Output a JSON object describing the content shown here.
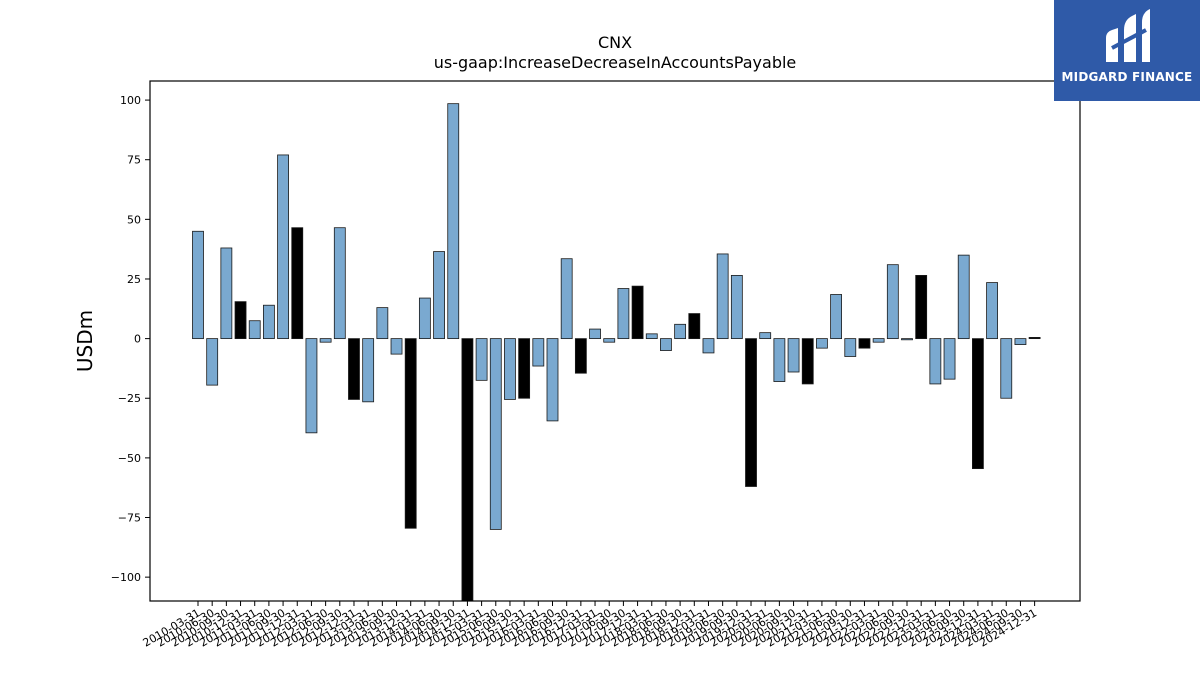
{
  "chart_data": {
    "type": "bar",
    "title": "CNX",
    "subtitle": "us-gaap:IncreaseDecreaseInAccountsPayable",
    "xlabel": "",
    "ylabel": "USDm",
    "ylim": [
      -110,
      108
    ],
    "yticks": [
      100,
      75,
      50,
      25,
      0,
      -25,
      -50,
      -75,
      -100
    ],
    "ytick_labels": [
      "100",
      "75",
      "50",
      "25",
      "0",
      "−25",
      "−50",
      "−75",
      "−100"
    ],
    "grid": false,
    "legend": "none",
    "colors": {
      "quarter": "#7aa9d0",
      "annual": "#000000",
      "edge": "#1a1a1a"
    },
    "categories": [
      "2010-03-31",
      "2010-06-30",
      "2010-09-30",
      "2010-12-31",
      "2011-03-31",
      "2011-06-30",
      "2011-09-30",
      "2011-12-31",
      "2012-03-31",
      "2012-06-30",
      "2012-09-30",
      "2012-12-31",
      "2013-03-31",
      "2013-06-30",
      "2013-09-30",
      "2013-12-31",
      "2014-03-31",
      "2014-06-30",
      "2014-09-30",
      "2014-12-31",
      "2015-03-31",
      "2015-06-30",
      "2015-09-30",
      "2015-12-31",
      "2016-03-31",
      "2016-06-30",
      "2016-09-30",
      "2016-12-31",
      "2017-03-31",
      "2017-06-30",
      "2017-09-30",
      "2017-12-31",
      "2018-03-31",
      "2018-06-30",
      "2018-09-30",
      "2018-12-31",
      "2019-03-31",
      "2019-06-30",
      "2019-09-30",
      "2019-12-31",
      "2020-03-31",
      "2020-06-30",
      "2020-09-30",
      "2020-12-31",
      "2021-03-31",
      "2021-06-30",
      "2021-09-30",
      "2021-12-31",
      "2022-03-31",
      "2022-06-30",
      "2022-09-30",
      "2022-12-31",
      "2023-03-31",
      "2023-06-30",
      "2023-09-30",
      "2023-12-31",
      "2024-03-31",
      "2024-06-30",
      "2024-09-30",
      "2024-12-31"
    ],
    "values": [
      45,
      -19.5,
      38,
      15.5,
      7.5,
      14,
      77,
      46.5,
      -39.5,
      -1.5,
      46.5,
      -25.5,
      -26.5,
      13,
      -6.5,
      -79.5,
      17,
      36.5,
      98.5,
      -115,
      -17.5,
      -80,
      -25.5,
      -25,
      -11.5,
      -34.5,
      33.5,
      -14.5,
      4,
      -1.5,
      21,
      22,
      2,
      -5,
      6,
      10.5,
      -6,
      35.5,
      26.5,
      -62,
      2.5,
      -18,
      -14,
      -19,
      -4,
      18.5,
      -7.5,
      -4,
      -1.5,
      31,
      -0.5,
      26.5,
      -19,
      -17,
      35,
      -54.5,
      23.5,
      -25,
      -2.5,
      0.5
    ],
    "annual_flags": [
      false,
      false,
      false,
      true,
      false,
      false,
      false,
      true,
      false,
      false,
      false,
      true,
      false,
      false,
      false,
      true,
      false,
      false,
      false,
      true,
      false,
      false,
      false,
      true,
      false,
      false,
      false,
      true,
      false,
      false,
      false,
      true,
      false,
      false,
      false,
      true,
      false,
      false,
      false,
      true,
      false,
      false,
      false,
      true,
      false,
      false,
      false,
      true,
      false,
      false,
      false,
      true,
      false,
      false,
      false,
      true,
      false,
      false,
      false,
      true
    ]
  },
  "logo": {
    "text": "MIDGARD FINANCE"
  }
}
